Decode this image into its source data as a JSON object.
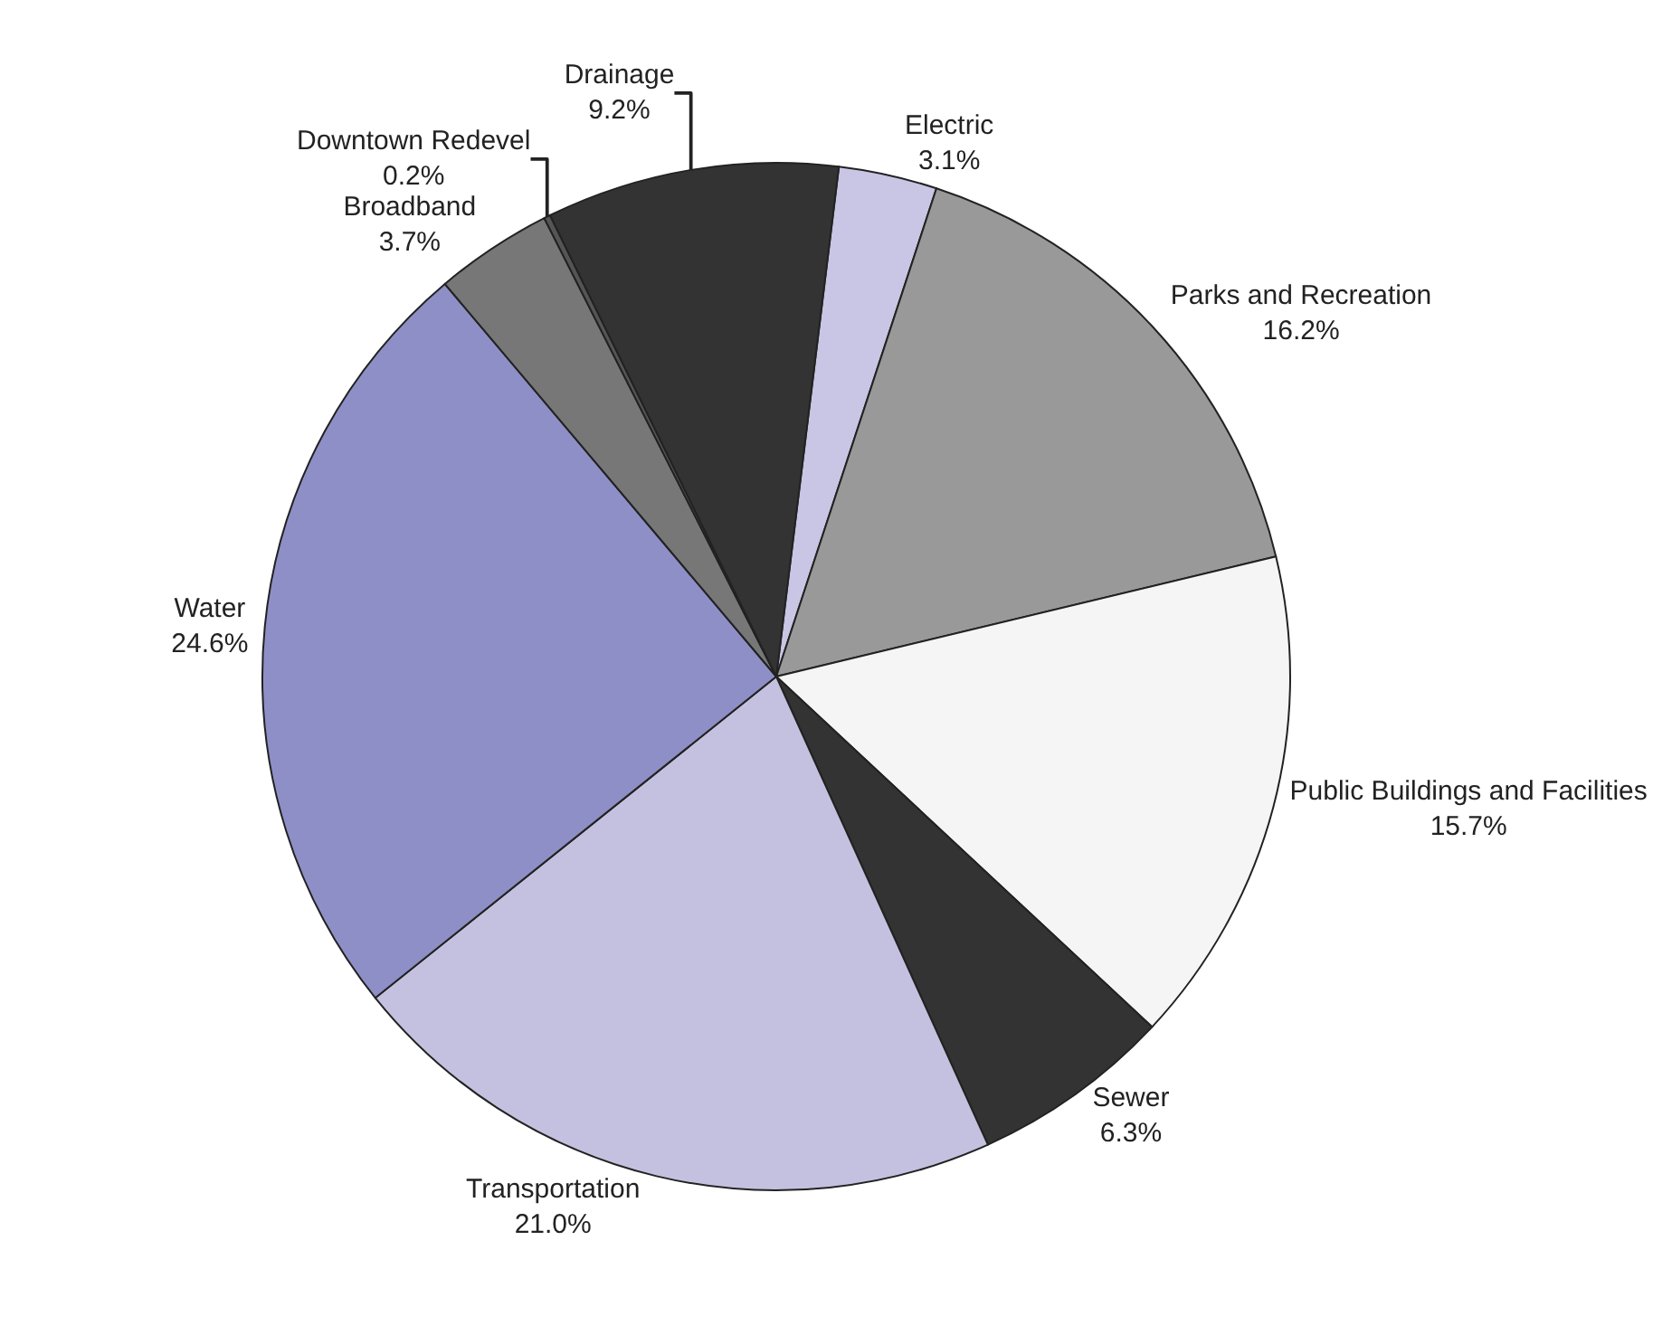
{
  "chart_data": {
    "type": "pie",
    "categories": [
      "Electric",
      "Parks and Recreation",
      "Public Buildings and Facilities",
      "Sewer",
      "Transportation",
      "Water",
      "Broadband",
      "Downtown Redevel",
      "Drainage"
    ],
    "values": [
      3.1,
      16.2,
      15.7,
      6.3,
      21.0,
      24.6,
      3.7,
      0.2,
      9.2
    ],
    "value_labels": [
      "3.1%",
      "16.2%",
      "15.7%",
      "6.3%",
      "21.0%",
      "24.6%",
      "3.7%",
      "0.2%",
      "9.2%"
    ],
    "colors": [
      "#c8c6e4",
      "#999999",
      "#f4f5f4",
      "#333333",
      "#c4c1e0",
      "#8f8fc7",
      "#777777",
      "#555555",
      "#333333"
    ],
    "legend": false
  }
}
